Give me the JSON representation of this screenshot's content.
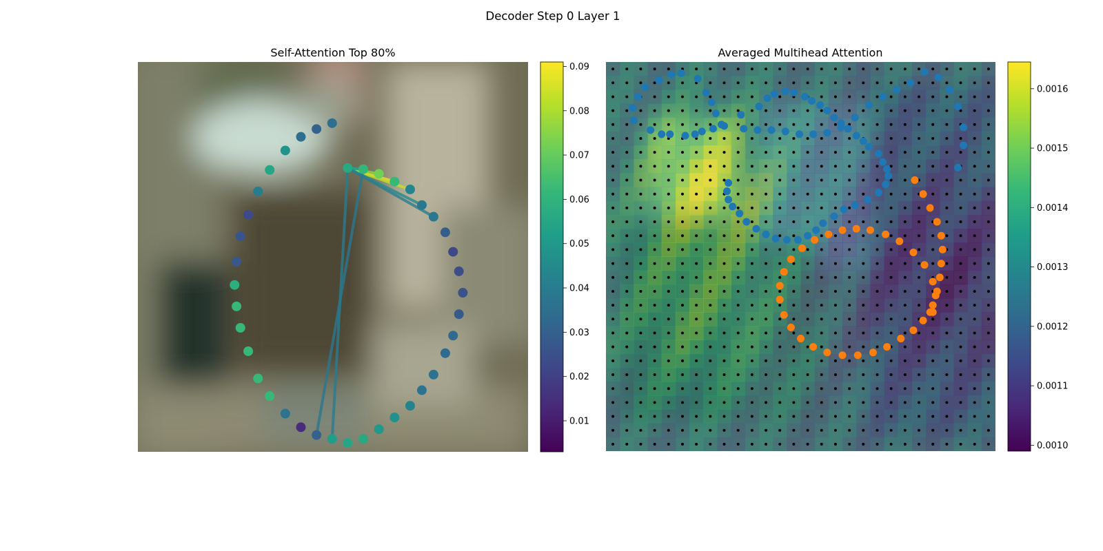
{
  "figure": {
    "suptitle": "Decoder Step 0 Layer 1"
  },
  "colors": {
    "viridis": [
      "#440154",
      "#482878",
      "#3e4989",
      "#31688e",
      "#26828e",
      "#1f9e89",
      "#35b779",
      "#6ece58",
      "#b5de2b",
      "#fde725"
    ],
    "pred_points": "#1f77b4",
    "gt_points": "#ff7f0e",
    "grid_points": "#000000"
  },
  "chart_data": [
    {
      "type": "scatter",
      "title": "Self-Attention Top 80%",
      "background": "blurred photo",
      "colorbar": {
        "colormap": "viridis",
        "range": [
          0.003,
          0.091
        ],
        "ticks": [
          "0.01",
          "0.02",
          "0.03",
          "0.04",
          "0.05",
          "0.06",
          "0.07",
          "0.08",
          "0.09"
        ]
      },
      "axes_visible": false,
      "points": [
        {
          "x": 40,
          "y": 12,
          "value": 0.056
        },
        {
          "x": 44,
          "y": 12.3,
          "value": 0.061
        },
        {
          "x": 48,
          "y": 13.5,
          "value": 0.072
        },
        {
          "x": 52,
          "y": 15.5,
          "value": 0.062
        },
        {
          "x": 56,
          "y": 17.5,
          "value": 0.043
        },
        {
          "x": 59,
          "y": 21.5,
          "value": 0.038
        },
        {
          "x": 62,
          "y": 24.5,
          "value": 0.038
        },
        {
          "x": 65,
          "y": 28.5,
          "value": 0.029
        },
        {
          "x": 67,
          "y": 33.5,
          "value": 0.022
        },
        {
          "x": 68.5,
          "y": 38.5,
          "value": 0.024
        },
        {
          "x": 69.5,
          "y": 44,
          "value": 0.025
        },
        {
          "x": 68.5,
          "y": 49.5,
          "value": 0.028
        },
        {
          "x": 67,
          "y": 55,
          "value": 0.033
        },
        {
          "x": 65,
          "y": 59.5,
          "value": 0.033
        },
        {
          "x": 62,
          "y": 65,
          "value": 0.036
        },
        {
          "x": 59,
          "y": 69,
          "value": 0.036
        },
        {
          "x": 56,
          "y": 73,
          "value": 0.042
        },
        {
          "x": 52,
          "y": 76,
          "value": 0.047
        },
        {
          "x": 48,
          "y": 79,
          "value": 0.05
        },
        {
          "x": 44,
          "y": 81.5,
          "value": 0.056
        },
        {
          "x": 40,
          "y": 82.5,
          "value": 0.055
        },
        {
          "x": 36,
          "y": 81.5,
          "value": 0.052
        },
        {
          "x": 32,
          "y": 80.5,
          "value": 0.03
        },
        {
          "x": 28,
          "y": 78.5,
          "value": 0.014
        },
        {
          "x": 24,
          "y": 75,
          "value": 0.036
        },
        {
          "x": 20,
          "y": 70.5,
          "value": 0.062
        },
        {
          "x": 17,
          "y": 66,
          "value": 0.062
        },
        {
          "x": 14.5,
          "y": 59,
          "value": 0.062
        },
        {
          "x": 12.5,
          "y": 53,
          "value": 0.062
        },
        {
          "x": 11.5,
          "y": 47.5,
          "value": 0.062
        },
        {
          "x": 11,
          "y": 42,
          "value": 0.058
        },
        {
          "x": 11.5,
          "y": 36,
          "value": 0.027
        },
        {
          "x": 12.5,
          "y": 29.5,
          "value": 0.026
        },
        {
          "x": 14.5,
          "y": 24,
          "value": 0.023
        },
        {
          "x": 17,
          "y": 18,
          "value": 0.04
        },
        {
          "x": 20,
          "y": 12.5,
          "value": 0.055
        },
        {
          "x": 24,
          "y": 7.5,
          "value": 0.048
        },
        {
          "x": 28,
          "y": 4,
          "value": 0.035
        },
        {
          "x": 32,
          "y": 2,
          "value": 0.03
        },
        {
          "x": 36,
          "y": 0.5,
          "value": 0.035
        }
      ],
      "attention_links": [
        {
          "from": 40,
          "to": 52,
          "value": 0.088
        },
        {
          "from": 40,
          "to": 56,
          "value": 0.083
        },
        {
          "from": 40,
          "to": 48,
          "value": 0.076
        },
        {
          "from": 40,
          "to": 44,
          "value": 0.062
        },
        {
          "from": 40,
          "to": 59,
          "value": 0.045
        },
        {
          "from": 40,
          "to": 62,
          "value": 0.04
        },
        {
          "from": 40,
          "to": 36,
          "value": 0.04
        },
        {
          "from": 44,
          "to": 32,
          "value": 0.038
        },
        {
          "from": 40,
          "to": 44,
          "value": 0.05
        }
      ]
    },
    {
      "type": "heatmap",
      "title": "Averaged Multihead Attention",
      "background": "blurred photo",
      "colorbar": {
        "colormap": "viridis",
        "range": [
          0.00099,
          0.001645
        ],
        "ticks": [
          "0.0010",
          "0.0011",
          "0.0012",
          "0.0013",
          "0.0014",
          "0.0015",
          "0.0016"
        ]
      },
      "axes_visible": false,
      "grid": {
        "rows": 28,
        "cols": 28
      },
      "prediction_points": [
        [
          24.8,
          7.1
        ],
        [
          25.2,
          5.5
        ],
        [
          25.2,
          4.2
        ],
        [
          24.8,
          2.7
        ],
        [
          24.2,
          1.5
        ],
        [
          23.4,
          0.6
        ],
        [
          22.4,
          0.2
        ],
        [
          21.4,
          1.0
        ],
        [
          20.4,
          1.5
        ],
        [
          19.4,
          2.0
        ],
        [
          18.4,
          2.6
        ],
        [
          17.4,
          3.5
        ],
        [
          16.4,
          4.2
        ],
        [
          15.4,
          4.6
        ],
        [
          14.4,
          4.7
        ],
        [
          13.4,
          4.7
        ],
        [
          12.4,
          4.5
        ],
        [
          11.4,
          4.4
        ],
        [
          10.4,
          4.4
        ],
        [
          9.4,
          4.3
        ],
        [
          8.0,
          4.1
        ],
        [
          7.4,
          3.2
        ],
        [
          7.1,
          2.4
        ],
        [
          6.7,
          1.7
        ],
        [
          6.1,
          0.7
        ],
        [
          4.9,
          0.3
        ],
        [
          4.2,
          0.4
        ],
        [
          3.3,
          0.8
        ],
        [
          2.3,
          1.3
        ],
        [
          1.8,
          2.0
        ],
        [
          1.4,
          2.8
        ],
        [
          1.5,
          3.7
        ],
        [
          2.7,
          4.4
        ],
        [
          3.5,
          4.7
        ],
        [
          4.1,
          4.7
        ],
        [
          5.2,
          4.8
        ],
        [
          5.9,
          4.7
        ],
        [
          6.4,
          4.5
        ],
        [
          7.2,
          4.3
        ],
        [
          7.8,
          4.0
        ],
        [
          9.2,
          3.3
        ],
        [
          10.5,
          2.7
        ],
        [
          11.1,
          2.1
        ],
        [
          11.6,
          1.8
        ],
        [
          12.4,
          1.6
        ],
        [
          13.0,
          1.7
        ],
        [
          13.8,
          2.0
        ],
        [
          14.3,
          2.3
        ],
        [
          14.9,
          2.6
        ],
        [
          15.4,
          3.0
        ],
        [
          15.9,
          3.5
        ],
        [
          16.4,
          3.9
        ],
        [
          16.9,
          4.3
        ],
        [
          17.5,
          4.8
        ],
        [
          18.0,
          5.2
        ],
        [
          18.4,
          5.6
        ],
        [
          19.1,
          6.1
        ],
        [
          19.4,
          6.7
        ],
        [
          19.7,
          7.2
        ],
        [
          19.8,
          7.7
        ],
        [
          19.6,
          8.3
        ],
        [
          19.1,
          8.9
        ],
        [
          18.3,
          9.4
        ],
        [
          17.4,
          9.8
        ],
        [
          16.6,
          10.1
        ],
        [
          15.9,
          10.6
        ],
        [
          15.1,
          11.1
        ],
        [
          14.6,
          11.6
        ],
        [
          14.0,
          12.0
        ],
        [
          13.3,
          12.3
        ],
        [
          12.5,
          12.3
        ],
        [
          11.7,
          12.2
        ],
        [
          11.0,
          11.9
        ],
        [
          10.3,
          11.5
        ],
        [
          9.6,
          11.0
        ],
        [
          9.1,
          10.4
        ],
        [
          8.6,
          9.9
        ],
        [
          8.3,
          9.4
        ],
        [
          8.2,
          8.8
        ],
        [
          8.3,
          8.2
        ]
      ],
      "ground_truth_points": [
        [
          23.0,
          17.5
        ],
        [
          23.2,
          16.3
        ],
        [
          23.0,
          15.3
        ],
        [
          22.4,
          14.1
        ],
        [
          21.6,
          13.2
        ],
        [
          20.6,
          12.4
        ],
        [
          19.6,
          11.9
        ],
        [
          18.5,
          11.6
        ],
        [
          17.5,
          11.5
        ],
        [
          16.5,
          11.6
        ],
        [
          15.5,
          11.9
        ],
        [
          14.5,
          12.3
        ],
        [
          13.6,
          12.9
        ],
        [
          12.8,
          13.7
        ],
        [
          12.3,
          14.6
        ],
        [
          12.0,
          15.6
        ],
        [
          12.0,
          16.6
        ],
        [
          12.3,
          17.7
        ],
        [
          12.8,
          18.6
        ],
        [
          13.5,
          19.4
        ],
        [
          14.4,
          20.0
        ],
        [
          15.4,
          20.4
        ],
        [
          16.5,
          20.6
        ],
        [
          17.6,
          20.6
        ],
        [
          18.7,
          20.4
        ],
        [
          19.7,
          20.0
        ],
        [
          20.7,
          19.4
        ],
        [
          21.6,
          18.8
        ],
        [
          22.3,
          18.1
        ],
        [
          22.8,
          17.5
        ],
        [
          23.0,
          17.0
        ],
        [
          23.3,
          16.0
        ],
        [
          23.5,
          15.0
        ],
        [
          23.6,
          14.0
        ],
        [
          23.7,
          13.0
        ],
        [
          23.6,
          12.0
        ],
        [
          23.3,
          11.0
        ],
        [
          22.8,
          10.0
        ],
        [
          22.3,
          9.0
        ],
        [
          21.7,
          8.0
        ]
      ]
    }
  ]
}
